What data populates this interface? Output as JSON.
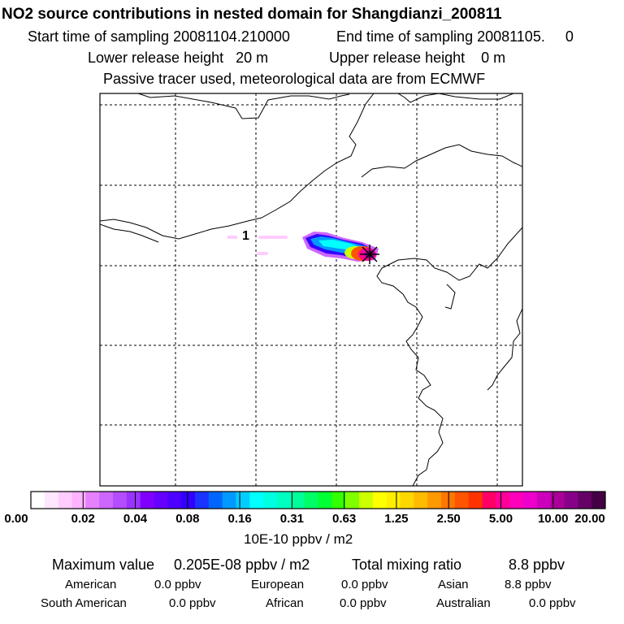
{
  "header": {
    "title": "NO2 source contributions in nested domain for Shangdianzi_200811",
    "start_label": "Start time of sampling 20081104.210000",
    "end_label": "End time of sampling 20081105.     0",
    "lower_label": "Lower release height   20 m",
    "upper_label": "Upper release height    0 m",
    "info": "Passive tracer used, meteorological data are from ECMWF"
  },
  "map": {
    "contour_label": "1",
    "station_marker": "receptor-star"
  },
  "colorbar": {
    "ticks": [
      "0.00",
      "0.02",
      "0.04",
      "0.08",
      "0.16",
      "0.31",
      "0.63",
      "1.25",
      "2.50",
      "5.00",
      "10.00",
      "20.00"
    ],
    "unit": "10E-10 ppbv / m2",
    "colors": [
      "#ffffff",
      "#ffe6ff",
      "#ffccff",
      "#ffb3ff",
      "#e680ff",
      "#cc66ff",
      "#b34dff",
      "#9933ff",
      "#8000ff",
      "#6600ff",
      "#4d00ff",
      "#3300ff",
      "#1a33ff",
      "#0066ff",
      "#0099ff",
      "#00ccff",
      "#00ffff",
      "#00ffe0",
      "#00ffc0",
      "#00ff99",
      "#00ff66",
      "#00ff33",
      "#33ff00",
      "#80ff00",
      "#ccff00",
      "#ffff00",
      "#ffee00",
      "#ffd700",
      "#ffbb00",
      "#ff9900",
      "#ff7700",
      "#ff5500",
      "#ff3300",
      "#ff0066",
      "#ff0099",
      "#ff00bb",
      "#ee00cc",
      "#cc00bb",
      "#aa0099",
      "#880088",
      "#660066",
      "#440044"
    ]
  },
  "summary": {
    "max_label": "Maximum value",
    "max_value": "0.205E-08 ppbv / m2",
    "total_label": "Total mixing ratio",
    "total_value": "8.8 ppbv",
    "regions": [
      {
        "name": "American",
        "value": "0.0 ppbv"
      },
      {
        "name": "European",
        "value": "0.0 ppbv"
      },
      {
        "name": "Asian",
        "value": "8.8 ppbv"
      },
      {
        "name": "South American",
        "value": "0.0 ppbv"
      },
      {
        "name": "African",
        "value": "0.0 ppbv"
      },
      {
        "name": "Australian",
        "value": "0.0 ppbv"
      }
    ]
  }
}
